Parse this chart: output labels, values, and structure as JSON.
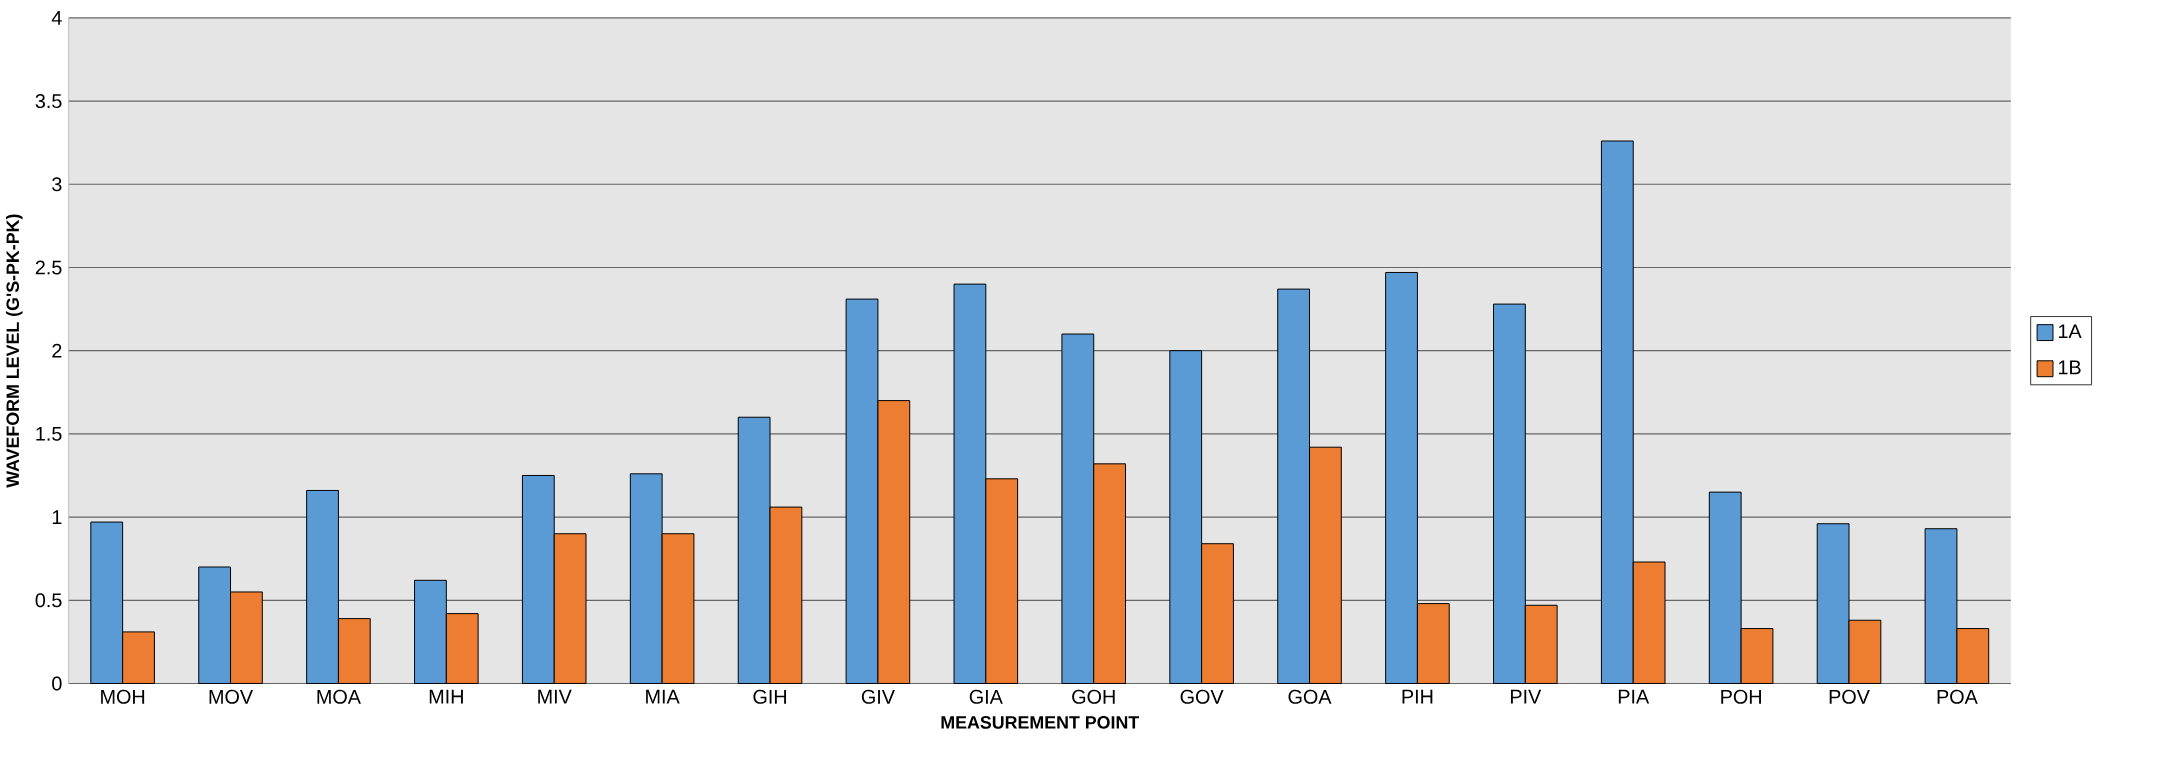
{
  "chart_data": {
    "type": "bar",
    "xlabel": "MEASUREMENT POINT",
    "ylabel": "WAVEFORM LEVEL (G'S-PK-PK)",
    "categories": [
      "MOH",
      "MOV",
      "MOA",
      "MIH",
      "MIV",
      "MIA",
      "GIH",
      "GIV",
      "GIA",
      "GOH",
      "GOV",
      "GOA",
      "PIH",
      "PIV",
      "PIA",
      "POH",
      "POV",
      "POA"
    ],
    "series": [
      {
        "name": "1A",
        "color": "#5b9bd5",
        "values": [
          0.97,
          0.7,
          1.16,
          0.62,
          1.25,
          1.26,
          1.6,
          2.31,
          2.4,
          2.1,
          2.0,
          2.37,
          2.47,
          2.28,
          3.26,
          1.15,
          0.96,
          0.93
        ]
      },
      {
        "name": "1B",
        "color": "#ed7d31",
        "values": [
          0.31,
          0.55,
          0.39,
          0.42,
          0.9,
          0.9,
          1.06,
          1.7,
          1.23,
          1.32,
          0.84,
          1.42,
          0.48,
          0.47,
          0.73,
          0.33,
          0.38,
          0.33
        ]
      }
    ],
    "ylim": [
      0,
      4
    ],
    "yticks": [
      0,
      0.5,
      1,
      1.5,
      2,
      2.5,
      3,
      3.5,
      4
    ],
    "grid": "y",
    "legend": "right"
  }
}
